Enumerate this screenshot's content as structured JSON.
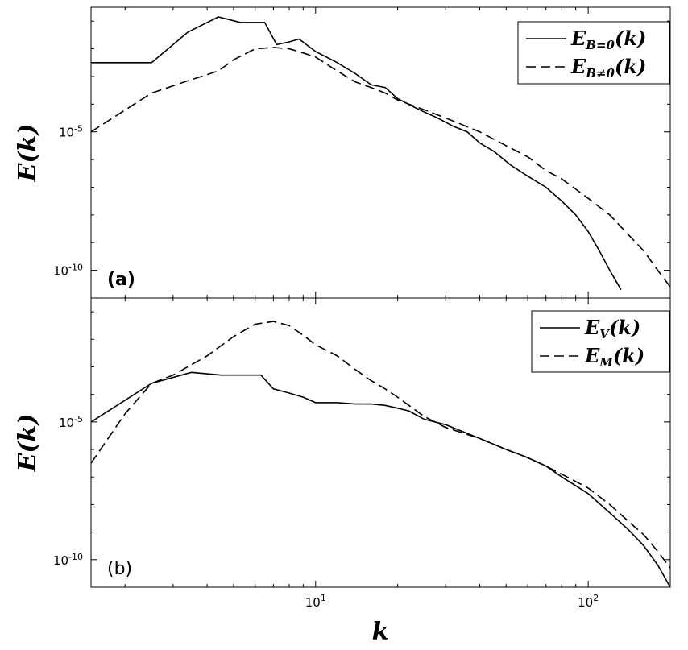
{
  "chart_data": [
    {
      "panel": "a",
      "type": "line",
      "panel_label": "(a)",
      "bold_label": true,
      "xscale": "log",
      "yscale": "log",
      "xlim": [
        1.5,
        200
      ],
      "ylim_log10": [
        -11,
        -0.5
      ],
      "ylabel": "E(k)",
      "yticks": [
        {
          "value": -5,
          "base": "10",
          "exp": "-5"
        },
        {
          "value": -10,
          "base": "10",
          "exp": "-10"
        }
      ],
      "legend": "top-right",
      "series": [
        {
          "name": "E_{B=0}(k)",
          "legend_main": "E",
          "legend_sub": "B=0",
          "legend_tail": "(k)",
          "style": "solid",
          "k": [
            1.5,
            2.5,
            3.4,
            4.4,
            5.3,
            6.5,
            7.2,
            8.0,
            8.7,
            10,
            12,
            14,
            16,
            18,
            20,
            24,
            28,
            32,
            36,
            40,
            45,
            52,
            60,
            70,
            80,
            90,
            100,
            110,
            120,
            132
          ],
          "log10E": [
            -2.5,
            -2.5,
            -1.4,
            -0.85,
            -1.05,
            -1.05,
            -1.85,
            -1.75,
            -1.65,
            -2.1,
            -2.5,
            -2.9,
            -3.3,
            -3.4,
            -3.8,
            -4.2,
            -4.5,
            -4.8,
            -5.0,
            -5.4,
            -5.7,
            -6.2,
            -6.6,
            -7.0,
            -7.5,
            -8.0,
            -8.6,
            -9.3,
            -10.0,
            -10.7
          ]
        },
        {
          "name": "E_{B≠0}(k)",
          "legend_main": "E",
          "legend_sub": "B≠0",
          "legend_tail": "(k)",
          "style": "dashed",
          "k": [
            1.5,
            2.5,
            3.3,
            4.4,
            5.0,
            6.0,
            7.0,
            8.0,
            9.0,
            10,
            12,
            14,
            16,
            18,
            20,
            25,
            30,
            40,
            50,
            60,
            70,
            80,
            100,
            120,
            140,
            160,
            180,
            200
          ],
          "log10E": [
            -5.0,
            -3.6,
            -3.2,
            -2.8,
            -2.4,
            -2.0,
            -1.95,
            -2.0,
            -2.15,
            -2.3,
            -2.8,
            -3.2,
            -3.4,
            -3.6,
            -3.85,
            -4.2,
            -4.5,
            -5.0,
            -5.5,
            -5.9,
            -6.4,
            -6.7,
            -7.4,
            -8.0,
            -8.7,
            -9.3,
            -10.0,
            -10.6
          ]
        }
      ]
    },
    {
      "panel": "b",
      "type": "line",
      "panel_label": "(b)",
      "bold_label": false,
      "xscale": "log",
      "yscale": "log",
      "xlim": [
        1.5,
        200
      ],
      "ylim_log10": [
        -11,
        -0.5
      ],
      "xlabel": "k",
      "ylabel": "E(k)",
      "xticks": [
        {
          "value": 10,
          "base": "10",
          "exp": "1"
        },
        {
          "value": 100,
          "base": "10",
          "exp": "2"
        }
      ],
      "yticks": [
        {
          "value": -5,
          "base": "10",
          "exp": "-5"
        },
        {
          "value": -10,
          "base": "10",
          "exp": "-10"
        }
      ],
      "legend": "top-right",
      "series": [
        {
          "name": "E_V(k)",
          "legend_main": "E",
          "legend_sub": "V",
          "legend_tail": "(k)",
          "style": "solid",
          "k": [
            1.5,
            2.5,
            3.5,
            4.5,
            5.5,
            6.3,
            7.0,
            8.0,
            9.0,
            10,
            12,
            14,
            16,
            18,
            20,
            22,
            25,
            30,
            40,
            50,
            60,
            70,
            80,
            100,
            120,
            140,
            160,
            180,
            200
          ],
          "log10E": [
            -5.0,
            -3.6,
            -3.2,
            -3.3,
            -3.3,
            -3.3,
            -3.8,
            -3.95,
            -4.1,
            -4.3,
            -4.3,
            -4.35,
            -4.35,
            -4.4,
            -4.5,
            -4.6,
            -4.9,
            -5.1,
            -5.6,
            -6.0,
            -6.3,
            -6.6,
            -7.0,
            -7.6,
            -8.3,
            -8.9,
            -9.5,
            -10.2,
            -11.0
          ]
        },
        {
          "name": "E_M(k)",
          "legend_main": "E",
          "legend_sub": "M",
          "legend_tail": "(k)",
          "style": "dashed",
          "k": [
            1.5,
            2.0,
            2.5,
            3.0,
            4.0,
            5.0,
            6.0,
            7.0,
            8.0,
            9.0,
            10,
            12,
            14,
            16,
            18,
            20,
            22,
            25,
            30,
            40,
            50,
            60,
            70,
            80,
            100,
            120,
            140,
            160,
            180,
            200
          ],
          "log10E": [
            -6.5,
            -4.7,
            -3.6,
            -3.3,
            -2.6,
            -1.9,
            -1.45,
            -1.35,
            -1.5,
            -1.85,
            -2.2,
            -2.6,
            -3.1,
            -3.5,
            -3.8,
            -4.1,
            -4.4,
            -4.8,
            -5.2,
            -5.6,
            -6.0,
            -6.3,
            -6.6,
            -6.9,
            -7.4,
            -8.0,
            -8.6,
            -9.1,
            -9.7,
            -10.3
          ]
        }
      ]
    }
  ]
}
